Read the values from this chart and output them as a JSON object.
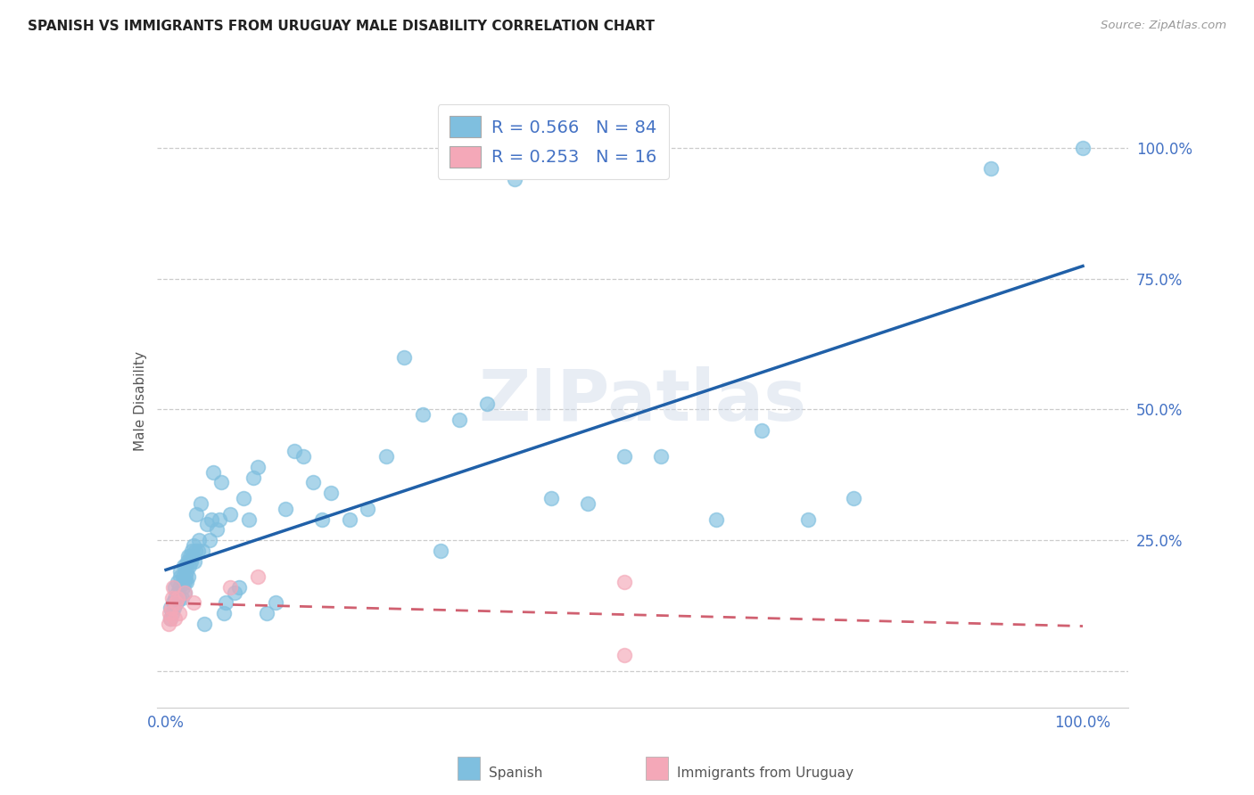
{
  "title": "SPANISH VS IMMIGRANTS FROM URUGUAY MALE DISABILITY CORRELATION CHART",
  "source": "Source: ZipAtlas.com",
  "ylabel": "Male Disability",
  "watermark": "ZIPatlas",
  "legend_label1": "Spanish",
  "legend_label2": "Immigrants from Uruguay",
  "r1": 0.566,
  "n1": 84,
  "r2": 0.253,
  "n2": 16,
  "color_blue": "#7fbfdf",
  "color_pink": "#f4a8b8",
  "line_blue": "#2060a8",
  "line_pink": "#d06070",
  "axis_color": "#4472c4",
  "blue_x": [
    0.005,
    0.005,
    0.007,
    0.008,
    0.009,
    0.01,
    0.01,
    0.012,
    0.013,
    0.013,
    0.015,
    0.015,
    0.016,
    0.016,
    0.017,
    0.018,
    0.018,
    0.019,
    0.02,
    0.02,
    0.021,
    0.021,
    0.022,
    0.022,
    0.023,
    0.024,
    0.024,
    0.025,
    0.026,
    0.027,
    0.028,
    0.029,
    0.03,
    0.031,
    0.032,
    0.033,
    0.035,
    0.036,
    0.038,
    0.04,
    0.042,
    0.045,
    0.048,
    0.05,
    0.052,
    0.055,
    0.058,
    0.06,
    0.063,
    0.065,
    0.07,
    0.075,
    0.08,
    0.085,
    0.09,
    0.095,
    0.1,
    0.11,
    0.12,
    0.13,
    0.14,
    0.15,
    0.16,
    0.17,
    0.18,
    0.2,
    0.22,
    0.24,
    0.26,
    0.28,
    0.3,
    0.32,
    0.35,
    0.38,
    0.42,
    0.46,
    0.5,
    0.54,
    0.6,
    0.65,
    0.7,
    0.75,
    0.9,
    1.0
  ],
  "blue_y": [
    0.1,
    0.12,
    0.11,
    0.13,
    0.12,
    0.14,
    0.16,
    0.13,
    0.15,
    0.17,
    0.14,
    0.16,
    0.18,
    0.19,
    0.14,
    0.16,
    0.18,
    0.2,
    0.15,
    0.17,
    0.18,
    0.2,
    0.17,
    0.19,
    0.21,
    0.18,
    0.22,
    0.2,
    0.22,
    0.21,
    0.23,
    0.22,
    0.24,
    0.21,
    0.23,
    0.3,
    0.23,
    0.25,
    0.32,
    0.23,
    0.09,
    0.28,
    0.25,
    0.29,
    0.38,
    0.27,
    0.29,
    0.36,
    0.11,
    0.13,
    0.3,
    0.15,
    0.16,
    0.33,
    0.29,
    0.37,
    0.39,
    0.11,
    0.13,
    0.31,
    0.42,
    0.41,
    0.36,
    0.29,
    0.34,
    0.29,
    0.31,
    0.41,
    0.6,
    0.49,
    0.23,
    0.48,
    0.51,
    0.94,
    0.33,
    0.32,
    0.41,
    0.41,
    0.29,
    0.46,
    0.29,
    0.33,
    0.96,
    1.0
  ],
  "pink_x": [
    0.003,
    0.004,
    0.005,
    0.006,
    0.007,
    0.008,
    0.01,
    0.011,
    0.013,
    0.015,
    0.02,
    0.03,
    0.07,
    0.1,
    0.5,
    0.5
  ],
  "pink_y": [
    0.09,
    0.11,
    0.1,
    0.12,
    0.14,
    0.16,
    0.1,
    0.13,
    0.14,
    0.11,
    0.15,
    0.13,
    0.16,
    0.18,
    0.17,
    0.03
  ],
  "xlim": [
    -0.01,
    1.05
  ],
  "ylim": [
    -0.07,
    1.1
  ],
  "grid_color": "#cccccc",
  "grid_style": "--"
}
